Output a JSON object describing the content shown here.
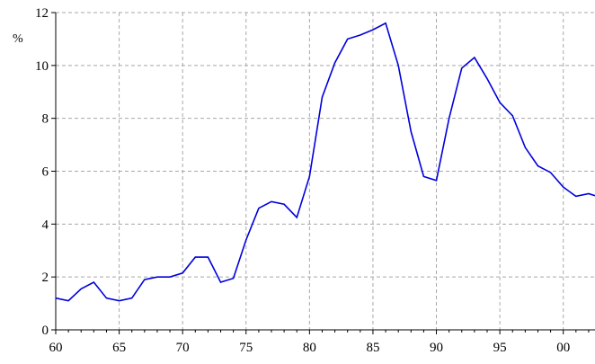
{
  "chart_data": {
    "type": "line",
    "ylabel": "%",
    "xlim": [
      1960,
      2002.5
    ],
    "ylim": [
      0,
      12
    ],
    "x_ticks": [
      1960,
      1965,
      1970,
      1975,
      1980,
      1985,
      1990,
      1995,
      2000
    ],
    "x_tick_labels": [
      "60",
      "65",
      "70",
      "75",
      "80",
      "85",
      "90",
      "95",
      "00"
    ],
    "y_ticks": [
      0,
      2,
      4,
      6,
      8,
      10,
      12
    ],
    "y_tick_labels": [
      "0",
      "2",
      "4",
      "6",
      "8",
      "10",
      "12"
    ],
    "grid": true,
    "series_color": "#0000dd",
    "series": [
      {
        "x": [
          1960,
          1961,
          1962,
          1963,
          1964,
          1965,
          1966,
          1967,
          1968,
          1969,
          1970,
          1971,
          1972,
          1973,
          1974,
          1975,
          1976,
          1977,
          1978,
          1979,
          1980,
          1981,
          1982,
          1983,
          1984,
          1985,
          1986,
          1987,
          1988,
          1989,
          1990,
          1991,
          1992,
          1993,
          1994,
          1995,
          1996,
          1997,
          1998,
          1999,
          2000,
          2001,
          2002,
          2003
        ],
        "values": [
          1.2,
          1.1,
          1.55,
          1.8,
          1.2,
          1.1,
          1.2,
          1.9,
          2.0,
          2.0,
          2.15,
          2.75,
          2.75,
          1.8,
          1.95,
          3.4,
          4.6,
          4.85,
          4.75,
          4.25,
          5.8,
          8.8,
          10.1,
          11.0,
          11.15,
          11.35,
          11.6,
          10.0,
          7.5,
          5.8,
          5.65,
          8.0,
          9.9,
          10.3,
          9.5,
          8.6,
          8.1,
          6.9,
          6.2,
          5.95,
          5.4,
          5.05,
          5.15,
          5.0
        ]
      }
    ]
  }
}
